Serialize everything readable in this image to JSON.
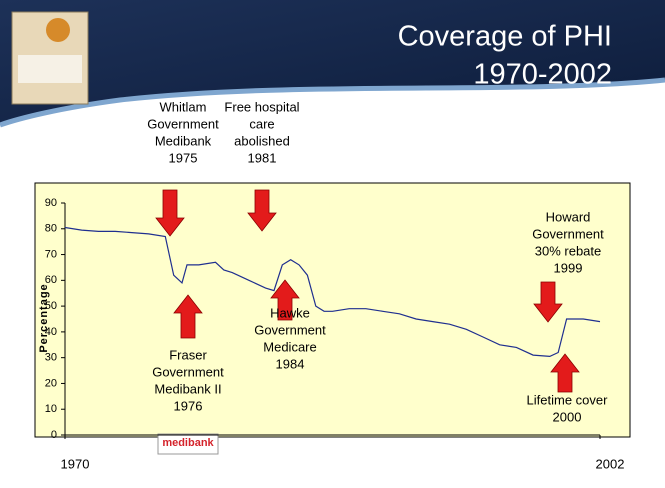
{
  "chart_data": {
    "type": "line",
    "title": [
      "Coverage of PHI",
      "1970-2002"
    ],
    "y_label": "Percentage",
    "logo_text": "medibank",
    "x": [
      1970,
      1971,
      1972,
      1973,
      1974,
      1975,
      1976,
      1976.5,
      1977,
      1977.3,
      1978,
      1979,
      1979.5,
      1980,
      1981,
      1982,
      1982.5,
      1983,
      1983.5,
      1984,
      1984.5,
      1985,
      1985.5,
      1986,
      1987,
      1988,
      1989,
      1990,
      1991,
      1992,
      1993,
      1994,
      1995,
      1996,
      1997,
      1998,
      1999,
      1999.5,
      2000,
      2001,
      2002
    ],
    "values": [
      80.5,
      79.5,
      79,
      79,
      78.5,
      78,
      77,
      62,
      59,
      66,
      66,
      67,
      64,
      63,
      60,
      57,
      56,
      66,
      68,
      66,
      62,
      50,
      48,
      48,
      49,
      49,
      48,
      47,
      45,
      44,
      43,
      41,
      38,
      35,
      34,
      31,
      30.5,
      32,
      45,
      45,
      44
    ],
    "color": "#1f2f8f",
    "xlim": [
      1970,
      2002
    ],
    "xticks": [
      1970,
      2002
    ],
    "ylim": [
      0,
      90
    ],
    "yticks": [
      0,
      10,
      20,
      30,
      40,
      50,
      60,
      70,
      80,
      90
    ],
    "annotations": [
      [
        "Whitlam",
        "Government",
        "Medibank",
        "1975"
      ],
      [
        "Free hospital",
        "care",
        "abolished",
        "1981"
      ],
      [
        "Fraser",
        "Government",
        "Medibank II",
        "1976"
      ],
      [
        "Hawke",
        "Government",
        "Medicare",
        "1984"
      ],
      [
        "Howard",
        "Government",
        "30% rebate",
        "1999"
      ],
      [
        "Lifetime cover",
        "2000"
      ]
    ]
  }
}
